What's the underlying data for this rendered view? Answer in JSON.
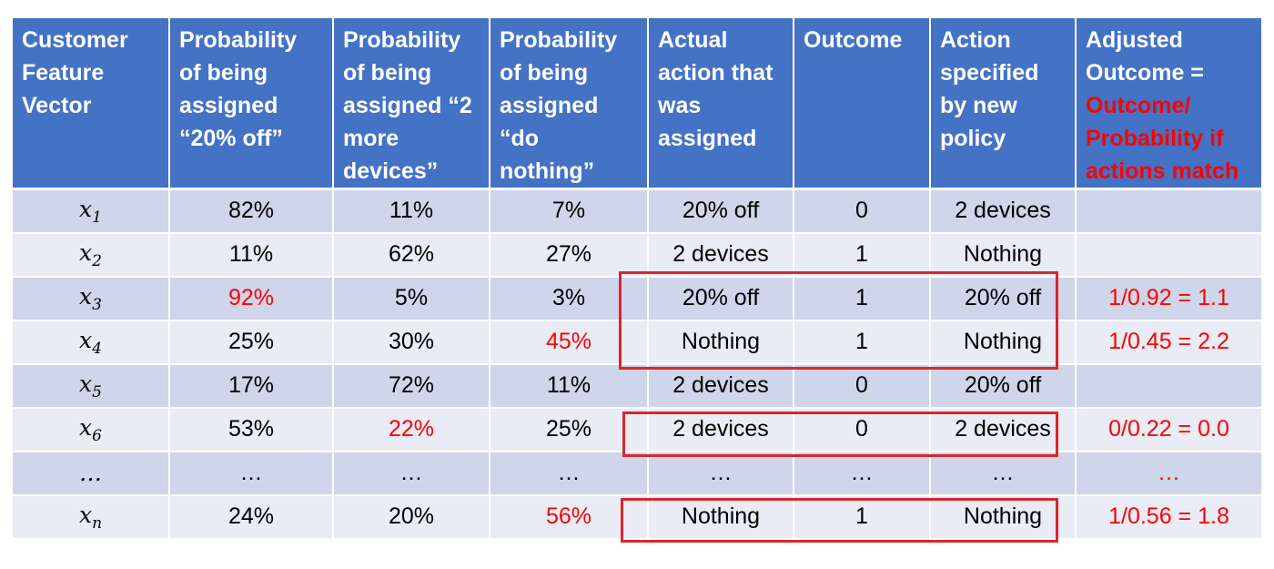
{
  "headers": [
    "Customer Feature Vector",
    "Probability of being assigned “20% off”",
    "Probability of being assigned “2 more devices”",
    "Probability of being assigned “do nothing”",
    "Actual action that was assigned",
    "Outcome",
    "Action specified by new policy"
  ],
  "adjusted_header": {
    "prefix": "Adjusted Outcome =",
    "highlight": "Outcome/ Probability if actions match"
  },
  "rows": [
    {
      "base": "x",
      "sub": "1",
      "p1": "82%",
      "p2": "11%",
      "p3": "7%",
      "actual": "20% off",
      "outcome": "0",
      "policy": "2 devices",
      "adjusted": "",
      "red": ""
    },
    {
      "base": "x",
      "sub": "2",
      "p1": "11%",
      "p2": "62%",
      "p3": "27%",
      "actual": "2 devices",
      "outcome": "1",
      "policy": "Nothing",
      "adjusted": "",
      "red": ""
    },
    {
      "base": "x",
      "sub": "3",
      "p1": "92%",
      "p2": "5%",
      "p3": "3%",
      "actual": "20% off",
      "outcome": "1",
      "policy": "20% off",
      "adjusted": "1/0.92 = 1.1",
      "red": "p1"
    },
    {
      "base": "x",
      "sub": "4",
      "p1": "25%",
      "p2": "30%",
      "p3": "45%",
      "actual": "Nothing",
      "outcome": "1",
      "policy": "Nothing",
      "adjusted": "1/0.45 = 2.2",
      "red": "p3"
    },
    {
      "base": "x",
      "sub": "5",
      "p1": "17%",
      "p2": "72%",
      "p3": "11%",
      "actual": "2 devices",
      "outcome": "0",
      "policy": "20% off",
      "adjusted": "",
      "red": ""
    },
    {
      "base": "x",
      "sub": "6",
      "p1": "53%",
      "p2": "22%",
      "p3": "25%",
      "actual": "2 devices",
      "outcome": "0",
      "policy": "2 devices",
      "adjusted": "0/0.22 = 0.0",
      "red": "p2"
    },
    {
      "base": "…",
      "sub": "",
      "p1": "…",
      "p2": "…",
      "p3": "…",
      "actual": "…",
      "outcome": "…",
      "policy": "…",
      "adjusted": "…",
      "red": ""
    },
    {
      "base": "x",
      "sub": "n",
      "p1": "24%",
      "p2": "20%",
      "p3": "56%",
      "actual": "Nothing",
      "outcome": "1",
      "policy": "Nothing",
      "adjusted": "1/0.56 = 1.8",
      "red": "p3"
    }
  ],
  "highlight_color": "#d9262c",
  "header_color": "#4472c4",
  "row_colors": [
    "#cfd5ea",
    "#e9ebf5"
  ]
}
